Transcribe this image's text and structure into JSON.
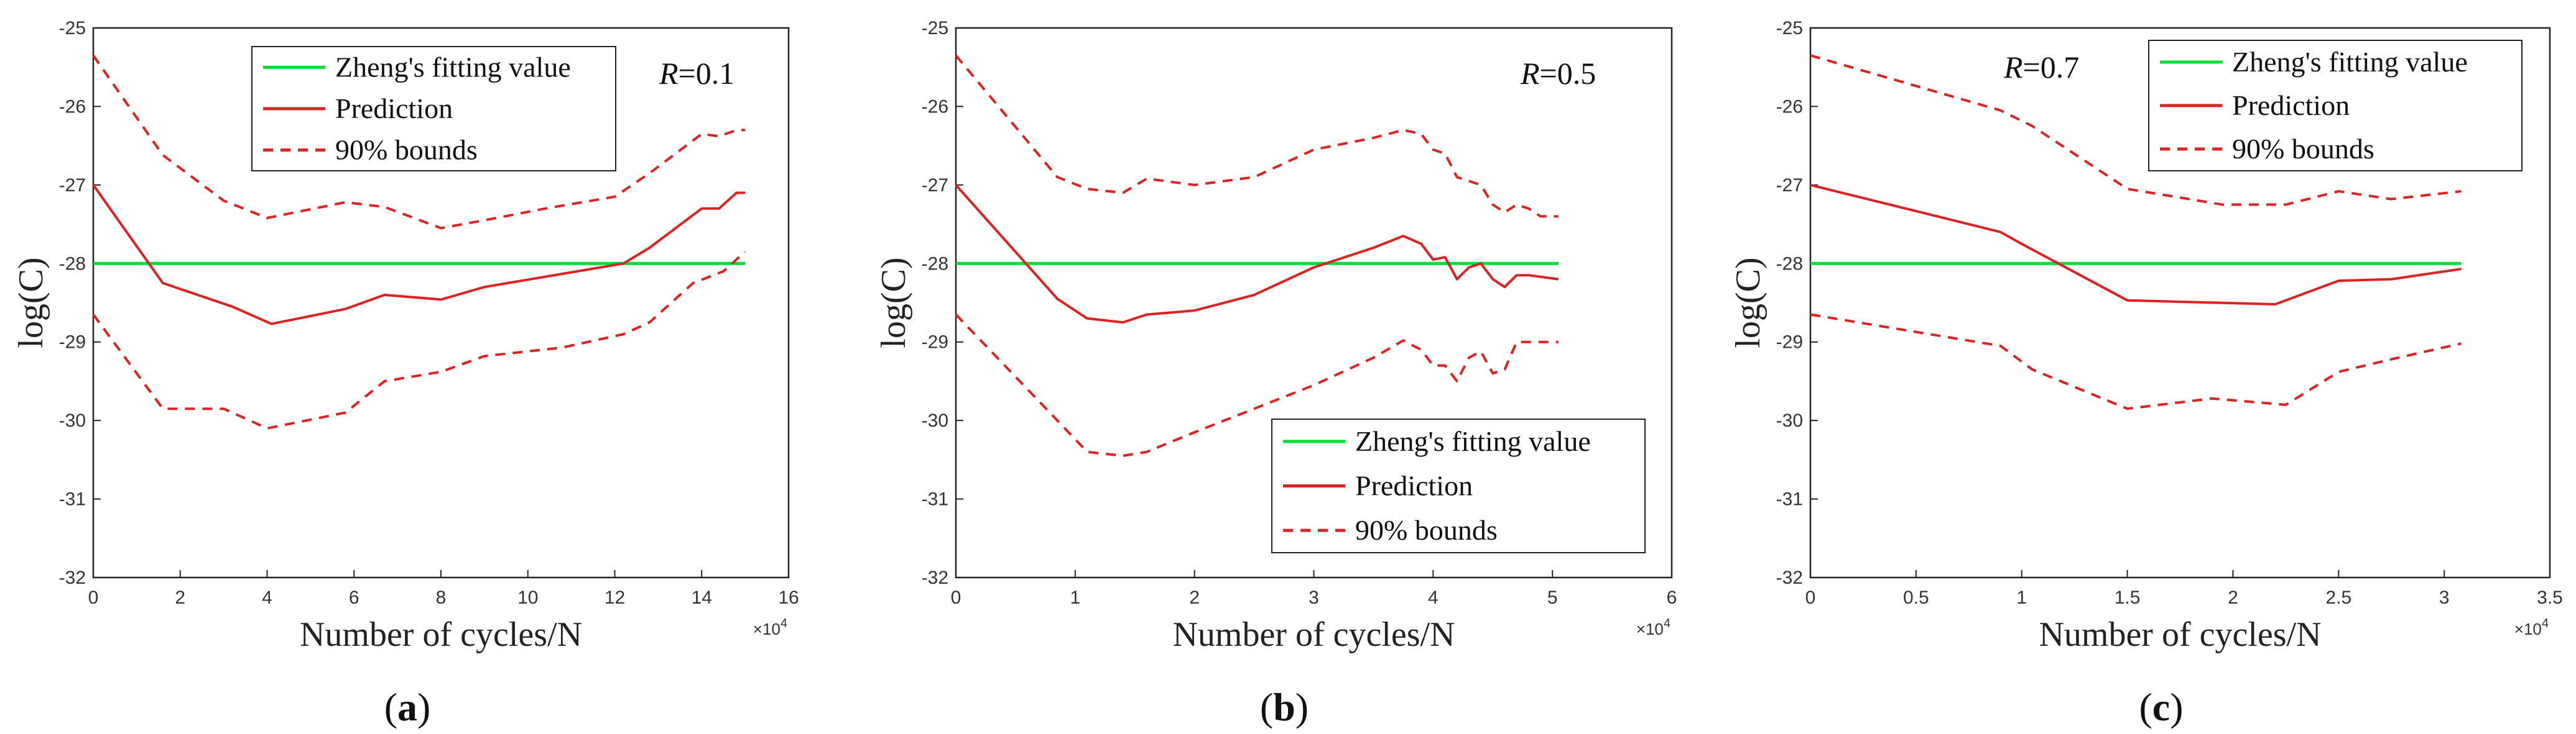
{
  "chart_data": [
    {
      "type": "line",
      "caption": "a",
      "annotation": {
        "symbol": "R",
        "text": "=0.1"
      },
      "xlabel": "Number of cycles/N",
      "ylabel": "log(C)",
      "x_multiplier_text": "×10",
      "x_multiplier_exp": "4",
      "xlim": [
        0,
        16
      ],
      "ylim": [
        -32,
        -25
      ],
      "xticks": [
        0,
        2,
        4,
        6,
        8,
        10,
        12,
        14,
        16
      ],
      "xtick_labels": [
        "0",
        "2",
        "4",
        "6",
        "8",
        "10",
        "12",
        "14",
        "16"
      ],
      "yticks": [
        -32,
        -31,
        -30,
        -29,
        -28,
        -27,
        -26,
        -25
      ],
      "ytick_labels": [
        "-32",
        "-31",
        "-30",
        "-29",
        "-28",
        "-27",
        "-26",
        "-25"
      ],
      "legend": {
        "position": "top-center"
      },
      "series": [
        {
          "name": "Zheng's fitting value",
          "color": "#00dd33",
          "style": "solid",
          "x": [
            0,
            15
          ],
          "y": [
            -28.0,
            -28.0
          ]
        },
        {
          "name": "Prediction",
          "color": "#dd2222",
          "style": "solid",
          "x": [
            0,
            1.6,
            3.2,
            4.1,
            5.8,
            6.7,
            8.0,
            9.0,
            12.2,
            12.8,
            14.0,
            14.4,
            14.8,
            15.0
          ],
          "y": [
            -27.0,
            -28.25,
            -28.55,
            -28.77,
            -28.58,
            -28.4,
            -28.46,
            -28.3,
            -28.0,
            -27.8,
            -27.3,
            -27.3,
            -27.1,
            -27.1
          ]
        },
        {
          "name": "90% bounds",
          "color": "#dd2222",
          "style": "dashed",
          "x": [
            0,
            1.6,
            3.0,
            4.0,
            5.8,
            6.7,
            8.0,
            9.0,
            10.4,
            12.0,
            12.8,
            14.0,
            14.4,
            14.8,
            15.0
          ],
          "y": [
            -25.35,
            -26.62,
            -27.2,
            -27.42,
            -27.22,
            -27.28,
            -27.55,
            -27.45,
            -27.3,
            -27.15,
            -26.85,
            -26.35,
            -26.38,
            -26.3,
            -26.3
          ]
        },
        {
          "name": "90% bounds (lower)",
          "color": "#dd2222",
          "style": "dashed",
          "x": [
            0,
            1.6,
            3.0,
            4.0,
            5.8,
            6.7,
            8.0,
            9.0,
            10.8,
            12.2,
            12.8,
            13.8,
            14.5,
            15.0
          ],
          "y": [
            -28.65,
            -29.85,
            -29.85,
            -30.1,
            -29.9,
            -29.5,
            -29.38,
            -29.18,
            -29.07,
            -28.9,
            -28.75,
            -28.25,
            -28.1,
            -27.85
          ]
        }
      ]
    },
    {
      "type": "line",
      "caption": "b",
      "annotation": {
        "symbol": "R",
        "text": "=0.5"
      },
      "xlabel": "Number of cycles/N",
      "ylabel": "log(C)",
      "x_multiplier_text": "×10",
      "x_multiplier_exp": "4",
      "xlim": [
        0,
        6
      ],
      "ylim": [
        -32,
        -25
      ],
      "xticks": [
        0,
        1,
        2,
        3,
        4,
        5,
        6
      ],
      "xtick_labels": [
        "0",
        "1",
        "2",
        "3",
        "4",
        "5",
        "6"
      ],
      "yticks": [
        -32,
        -31,
        -30,
        -29,
        -28,
        -27,
        -26,
        -25
      ],
      "ytick_labels": [
        "-32",
        "-31",
        "-30",
        "-29",
        "-28",
        "-27",
        "-26",
        "-25"
      ],
      "legend": {
        "position": "bottom-right"
      },
      "series": [
        {
          "name": "Zheng's fitting value",
          "color": "#00dd33",
          "style": "solid",
          "x": [
            0,
            5.05
          ],
          "y": [
            -28.0,
            -28.0
          ]
        },
        {
          "name": "Prediction",
          "color": "#dd2222",
          "style": "solid",
          "x": [
            0,
            0.85,
            1.1,
            1.4,
            1.6,
            2.0,
            2.5,
            3.0,
            3.5,
            3.75,
            3.9,
            4.0,
            4.1,
            4.2,
            4.3,
            4.4,
            4.5,
            4.6,
            4.7,
            4.8,
            5.05
          ],
          "y": [
            -27.0,
            -28.45,
            -28.7,
            -28.75,
            -28.65,
            -28.6,
            -28.4,
            -28.05,
            -27.8,
            -27.65,
            -27.75,
            -27.95,
            -27.92,
            -28.2,
            -28.05,
            -28.0,
            -28.2,
            -28.3,
            -28.15,
            -28.15,
            -28.2
          ]
        },
        {
          "name": "90% bounds",
          "color": "#dd2222",
          "style": "dashed",
          "x": [
            0,
            0.85,
            1.1,
            1.4,
            1.6,
            2.0,
            2.5,
            3.0,
            3.5,
            3.75,
            3.9,
            4.0,
            4.1,
            4.2,
            4.3,
            4.4,
            4.5,
            4.6,
            4.7,
            4.8,
            4.9,
            5.05
          ],
          "y": [
            -25.35,
            -26.9,
            -27.05,
            -27.1,
            -26.92,
            -27.0,
            -26.9,
            -26.55,
            -26.4,
            -26.3,
            -26.35,
            -26.55,
            -26.6,
            -26.9,
            -26.95,
            -27.0,
            -27.25,
            -27.35,
            -27.25,
            -27.3,
            -27.4,
            -27.4
          ]
        },
        {
          "name": "90% bounds (lower)",
          "color": "#dd2222",
          "style": "dashed",
          "x": [
            0,
            0.85,
            1.1,
            1.4,
            1.6,
            2.0,
            2.5,
            3.0,
            3.5,
            3.75,
            3.9,
            4.0,
            4.1,
            4.2,
            4.3,
            4.4,
            4.5,
            4.6,
            4.7,
            4.8,
            4.9,
            5.05
          ],
          "y": [
            -28.65,
            -30.0,
            -30.4,
            -30.45,
            -30.4,
            -30.15,
            -29.85,
            -29.55,
            -29.2,
            -28.98,
            -29.1,
            -29.3,
            -29.3,
            -29.5,
            -29.2,
            -29.12,
            -29.4,
            -29.35,
            -29.0,
            -29.0,
            -29.0,
            -29.0
          ]
        }
      ]
    },
    {
      "type": "line",
      "caption": "c",
      "annotation": {
        "symbol": "R",
        "text": "=0.7"
      },
      "xlabel": "Number of cycles/N",
      "ylabel": "log(C)",
      "x_multiplier_text": "×10",
      "x_multiplier_exp": "4",
      "xlim": [
        0,
        3.5
      ],
      "ylim": [
        -32,
        -25
      ],
      "xticks": [
        0,
        0.5,
        1,
        1.5,
        2,
        2.5,
        3,
        3.5
      ],
      "xtick_labels": [
        "0",
        "0.5",
        "1",
        "1.5",
        "2",
        "2.5",
        "3",
        "3.5"
      ],
      "yticks": [
        -32,
        -31,
        -30,
        -29,
        -28,
        -27,
        -26,
        -25
      ],
      "ytick_labels": [
        "-32",
        "-31",
        "-30",
        "-29",
        "-28",
        "-27",
        "-26",
        "-25"
      ],
      "legend": {
        "position": "top-right"
      },
      "series": [
        {
          "name": "Zheng's fitting value",
          "color": "#00dd33",
          "style": "solid",
          "x": [
            0,
            3.08
          ],
          "y": [
            -28.0,
            -28.0
          ]
        },
        {
          "name": "Prediction",
          "color": "#dd2222",
          "style": "solid",
          "x": [
            0,
            0.9,
            1.0,
            1.5,
            2.2,
            2.5,
            2.75,
            3.08
          ],
          "y": [
            -27.0,
            -27.6,
            -27.75,
            -28.47,
            -28.52,
            -28.22,
            -28.2,
            -28.07
          ]
        },
        {
          "name": "90% bounds",
          "color": "#dd2222",
          "style": "dashed",
          "x": [
            0,
            0.9,
            1.05,
            1.5,
            1.95,
            2.25,
            2.5,
            2.75,
            3.08
          ],
          "y": [
            -25.35,
            -26.05,
            -26.25,
            -27.05,
            -27.25,
            -27.25,
            -27.08,
            -27.18,
            -27.08
          ]
        },
        {
          "name": "90% bounds (lower)",
          "color": "#dd2222",
          "style": "dashed",
          "x": [
            0,
            0.9,
            1.05,
            1.5,
            1.9,
            2.25,
            2.5,
            2.75,
            3.08
          ],
          "y": [
            -28.65,
            -29.05,
            -29.35,
            -29.85,
            -29.72,
            -29.8,
            -29.38,
            -29.22,
            -29.02
          ]
        }
      ]
    }
  ]
}
